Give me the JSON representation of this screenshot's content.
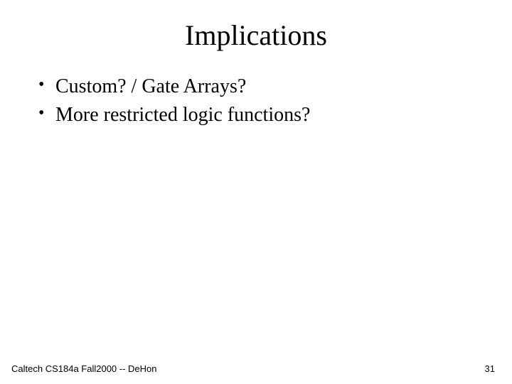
{
  "slide": {
    "title": "Implications",
    "bullets": [
      "Custom? / Gate Arrays?",
      "More restricted logic functions?"
    ],
    "footer_left": "Caltech CS184a Fall2000 -- DeHon",
    "page_number": "31",
    "title_fontsize": 40,
    "bullet_fontsize": 28,
    "footer_fontsize": 13,
    "text_color": "#000000",
    "background_color": "#ffffff",
    "title_font": "Times New Roman",
    "body_font": "Times New Roman",
    "footer_font": "Arial"
  }
}
